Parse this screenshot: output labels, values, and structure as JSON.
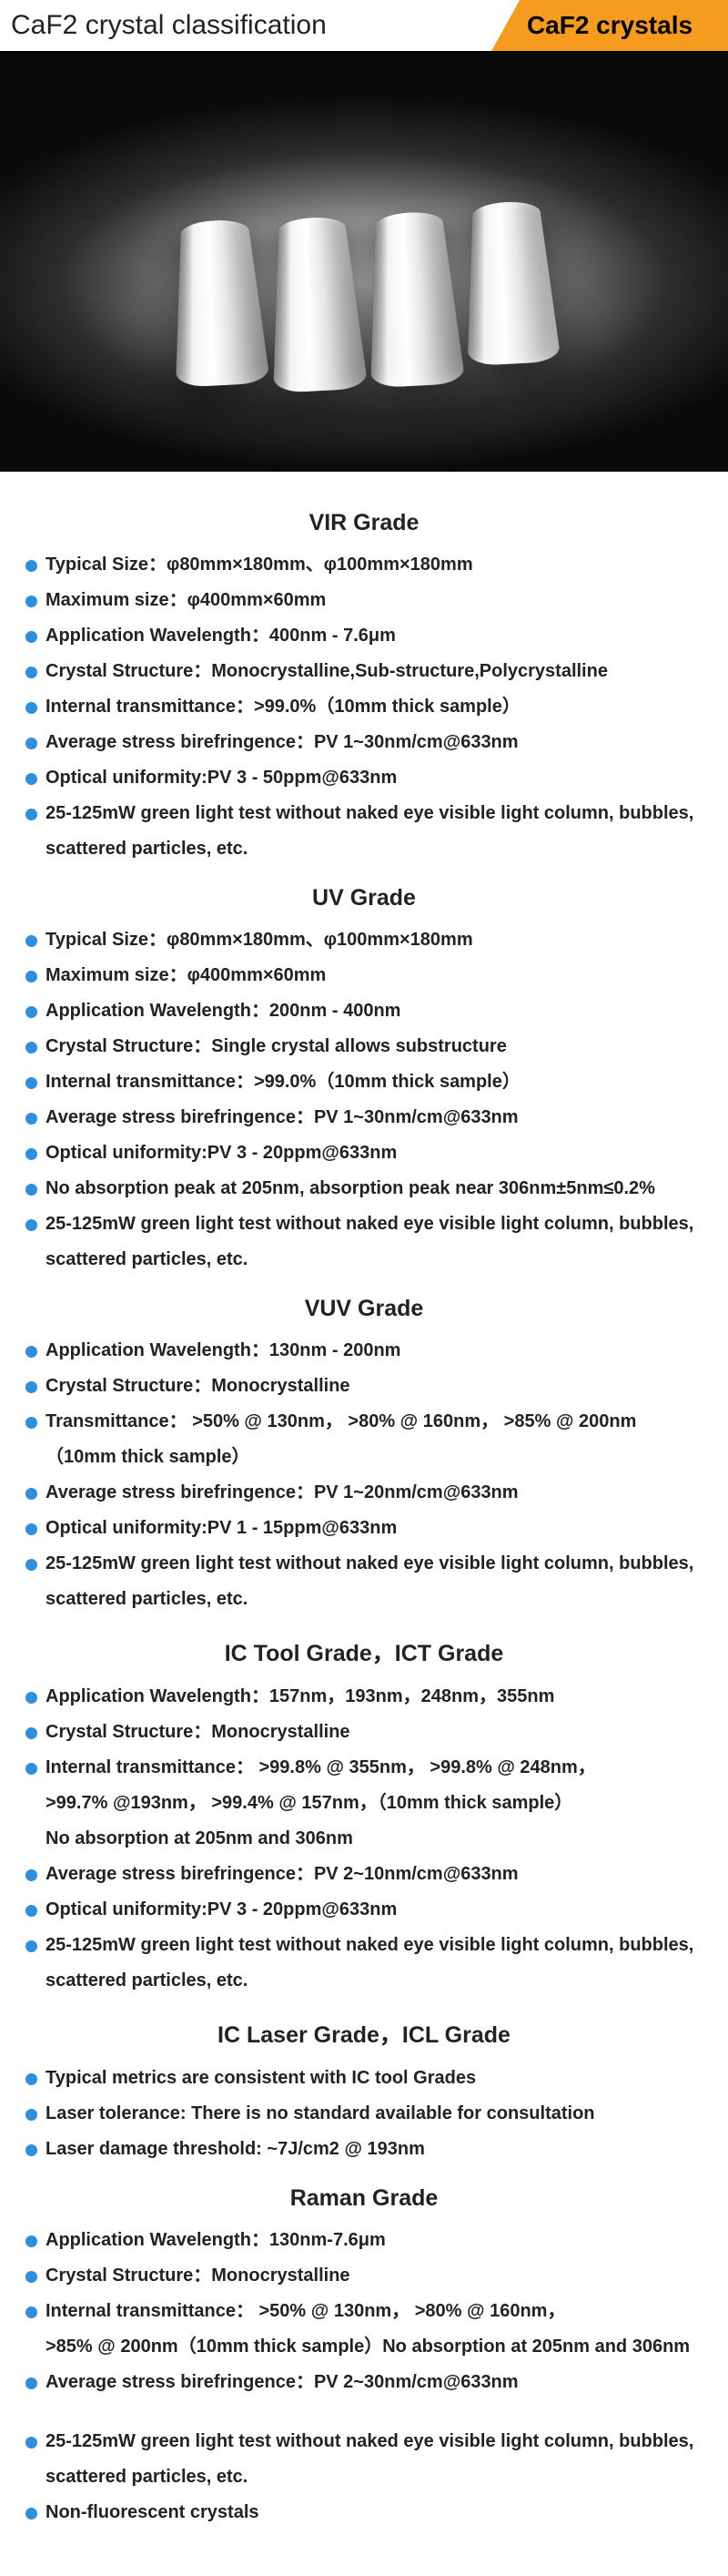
{
  "header": {
    "title": "CaF2 crystal classification",
    "badge": "CaF2 crystals"
  },
  "colors": {
    "accent": "#f79b1e",
    "bullet": "#2d8fe2",
    "text": "#222222",
    "rule": "#000000"
  },
  "grades": [
    {
      "title": "VIR Grade",
      "items": [
        {
          "text": "Typical Size：φ80mm×180mm、φ100mm×180mm"
        },
        {
          "text": "Maximum size：φ400mm×60mm"
        },
        {
          "text": "Application Wavelength：400nm - 7.6μm"
        },
        {
          "text": "Crystal Structure：Monocrystalline,Sub-structure,Polycrystalline"
        },
        {
          "text": "Internal transmittance：>99.0%（10mm thick sample）"
        },
        {
          "text": "Average stress birefringence：PV 1~30nm/cm@633nm"
        },
        {
          "text": "Optical uniformity:PV 3 - 50ppm@633nm"
        },
        {
          "text": "25-125mW green light test without naked eye visible light column, bubbles, scattered particles, etc."
        }
      ]
    },
    {
      "title": "UV Grade",
      "items": [
        {
          "text": "Typical Size：φ80mm×180mm、φ100mm×180mm"
        },
        {
          "text": "Maximum size：φ400mm×60mm"
        },
        {
          "text": "Application Wavelength：200nm - 400nm"
        },
        {
          "text": "Crystal Structure：Single crystal allows substructure"
        },
        {
          "text": "Internal transmittance：>99.0%（10mm thick sample）"
        },
        {
          "text": "Average stress birefringence：PV 1~30nm/cm@633nm"
        },
        {
          "text": "Optical uniformity:PV 3 - 20ppm@633nm"
        },
        {
          "text": "No absorption peak at 205nm, absorption peak near 306nm±5nm≤0.2%"
        },
        {
          "text": "25-125mW green light test without naked eye visible light column, bubbles, scattered particles, etc."
        }
      ]
    },
    {
      "title": "VUV Grade",
      "items": [
        {
          "text": "Application Wavelength：130nm - 200nm"
        },
        {
          "text": "Crystal Structure：Monocrystalline"
        },
        {
          "text": "Transmittance： >50% @ 130nm， >80% @ 160nm， >85% @ 200nm",
          "sub": "（10mm thick sample）"
        },
        {
          "text": "Average stress birefringence：PV 1~20nm/cm@633nm"
        },
        {
          "text": "Optical uniformity:PV 1 - 15ppm@633nm"
        },
        {
          "text": "25-125mW green light test without naked eye visible light column, bubbles, scattered particles, etc."
        }
      ]
    },
    {
      "title": "IC Tool Grade，ICT Grade",
      "items": [
        {
          "text": "Application Wavelength：157nm，193nm，248nm，355nm"
        },
        {
          "text": "Crystal Structure：Monocrystalline"
        },
        {
          "text": "Internal transmittance： >99.8% @ 355nm， >99.8% @ 248nm，",
          "sub": ">99.7% @193nm， >99.4% @ 157nm，（10mm thick sample）",
          "sub2": "No absorption at 205nm and 306nm"
        },
        {
          "text": "Average stress birefringence：PV 2~10nm/cm@633nm"
        },
        {
          "text": "Optical uniformity:PV 3 - 20ppm@633nm"
        },
        {
          "text": "25-125mW green light test without naked eye visible light column, bubbles, scattered particles, etc."
        }
      ]
    },
    {
      "title": "IC Laser Grade，ICL Grade",
      "items": [
        {
          "text": "Typical metrics are consistent with IC tool Grades"
        },
        {
          "text": "Laser tolerance: There is no standard available for consultation"
        },
        {
          "text": "Laser damage threshold: ~7J/cm2 @ 193nm"
        }
      ]
    },
    {
      "title": "Raman Grade",
      "items": [
        {
          "text": "Application Wavelength：130nm-7.6μm"
        },
        {
          "text": "Crystal Structure：Monocrystalline"
        },
        {
          "text": "Internal transmittance： >50% @ 130nm， >80% @ 160nm，",
          "sub": ">85% @ 200nm（10mm thick sample）No absorption at 205nm and 306nm"
        },
        {
          "text": "Average stress birefringence：PV 2~30nm/cm@633nm"
        },
        {
          "text": "25-125mW green light test without naked eye visible light column, bubbles, scattered particles, etc.",
          "gapBefore": true
        },
        {
          "text": "Non-fluorescent crystals"
        }
      ]
    }
  ]
}
